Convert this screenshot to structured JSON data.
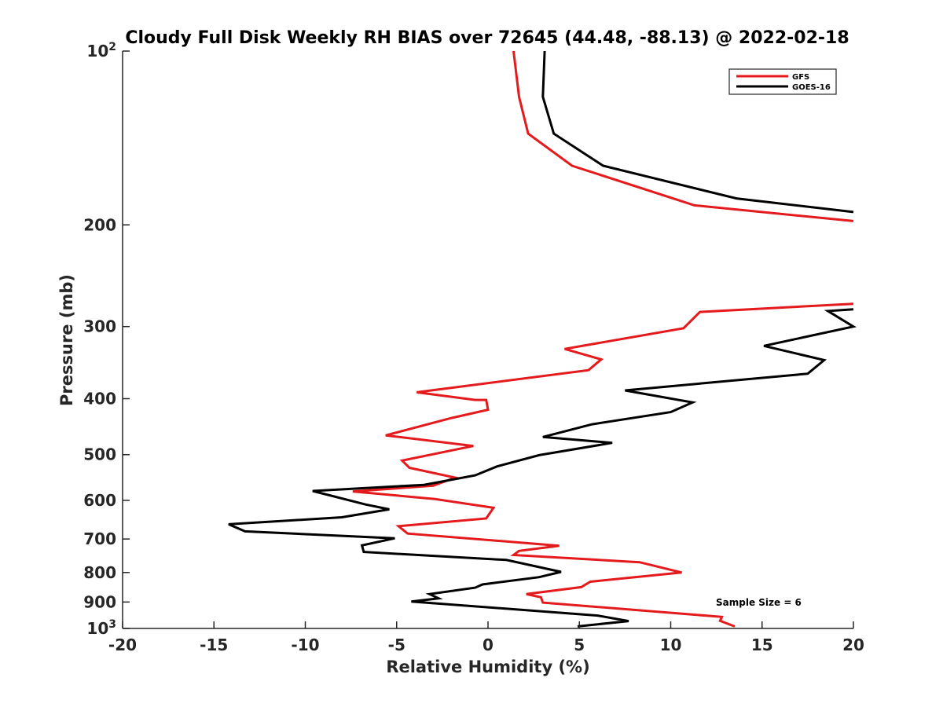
{
  "chart_data": {
    "type": "line",
    "title": "Cloudy Full Disk Weekly RH BIAS over 72645 (44.48, -88.13) @ 2022-02-18",
    "xlabel": "Relative Humidity (%)",
    "ylabel": "Pressure (mb)",
    "xlim": [
      -20,
      20
    ],
    "ylim": [
      100,
      1000
    ],
    "y_scale": "log",
    "y_reversed": true,
    "grid": false,
    "legend_position": "top-right",
    "x_ticks": [
      -20,
      -15,
      -10,
      -5,
      0,
      5,
      10,
      15,
      20
    ],
    "x_tick_labels": [
      "-20",
      "-15",
      "-10",
      "-5",
      "0",
      "5",
      "10",
      "15",
      "20"
    ],
    "y_ticks": [
      100,
      200,
      300,
      400,
      500,
      600,
      700,
      800,
      900,
      1000
    ],
    "y_tick_labels": [
      "10²",
      "200",
      "300",
      "400",
      "500",
      "600",
      "700",
      "800",
      "900",
      "10³"
    ],
    "annotation": "Sample Size = 6",
    "series": [
      {
        "name": "GFS",
        "color": "#e41a1c",
        "points": [
          [
            1.4,
            100
          ],
          [
            1.7,
            120
          ],
          [
            2.2,
            139
          ],
          [
            4.6,
            158
          ],
          [
            11.3,
            185
          ],
          [
            20,
            197
          ],
          [
            null,
            null
          ],
          [
            20,
            274
          ],
          [
            11.6,
            283
          ],
          [
            10.7,
            302
          ],
          [
            4.2,
            328
          ],
          [
            6.2,
            342
          ],
          [
            5.5,
            357
          ],
          [
            -3.9,
            390
          ],
          [
            -0.7,
            402
          ],
          [
            -0.1,
            402
          ],
          [
            0,
            418
          ],
          [
            -2,
            432
          ],
          [
            -5.6,
            463
          ],
          [
            -0.8,
            483
          ],
          [
            -4.7,
            512
          ],
          [
            -4.3,
            527
          ],
          [
            -1.8,
            548
          ],
          [
            -3,
            566
          ],
          [
            -7.4,
            579
          ],
          [
            -2.9,
            597
          ],
          [
            0.3,
            618
          ],
          [
            -0.1,
            645
          ],
          [
            -4.9,
            665
          ],
          [
            -4.4,
            685
          ],
          [
            3.9,
            719
          ],
          [
            1.7,
            734
          ],
          [
            1.4,
            746
          ],
          [
            8.3,
            768
          ],
          [
            10.6,
            800
          ],
          [
            5.6,
            830
          ],
          [
            5.1,
            848
          ],
          [
            2.1,
            872
          ],
          [
            2.9,
            883
          ],
          [
            3,
            902
          ],
          [
            12.8,
            955
          ],
          [
            12.7,
            970
          ],
          [
            13.5,
            992
          ]
        ]
      },
      {
        "name": "GOES-16",
        "color": "#000000",
        "points": [
          [
            3.1,
            100
          ],
          [
            3,
            120
          ],
          [
            3.6,
            139
          ],
          [
            6.3,
            158
          ],
          [
            13.6,
            180
          ],
          [
            20,
            190
          ],
          [
            null,
            null
          ],
          [
            20,
            280
          ],
          [
            18.6,
            282
          ],
          [
            20,
            300
          ],
          [
            15.1,
            324
          ],
          [
            18.4,
            343
          ],
          [
            17.5,
            362
          ],
          [
            7.5,
            387
          ],
          [
            11.2,
            406
          ],
          [
            10,
            422
          ],
          [
            5.7,
            443
          ],
          [
            3,
            466
          ],
          [
            6.8,
            477
          ],
          [
            2.8,
            501
          ],
          [
            0.5,
            524
          ],
          [
            -0.7,
            543
          ],
          [
            -3.5,
            564
          ],
          [
            -9.6,
            578
          ],
          [
            -6.7,
            610
          ],
          [
            -5.4,
            622
          ],
          [
            -8,
            642
          ],
          [
            -14.2,
            660
          ],
          [
            -13.3,
            679
          ],
          [
            -5.1,
            698
          ],
          [
            -6.9,
            718
          ],
          [
            -6.8,
            737
          ],
          [
            1,
            761
          ],
          [
            4,
            798
          ],
          [
            2.8,
            815
          ],
          [
            -0.3,
            839
          ],
          [
            -0.7,
            850
          ],
          [
            -3.2,
            872
          ],
          [
            -2.7,
            887
          ],
          [
            -4.2,
            898
          ],
          [
            6,
            950
          ],
          [
            7.7,
            971
          ],
          [
            4.9,
            992
          ]
        ]
      }
    ]
  }
}
